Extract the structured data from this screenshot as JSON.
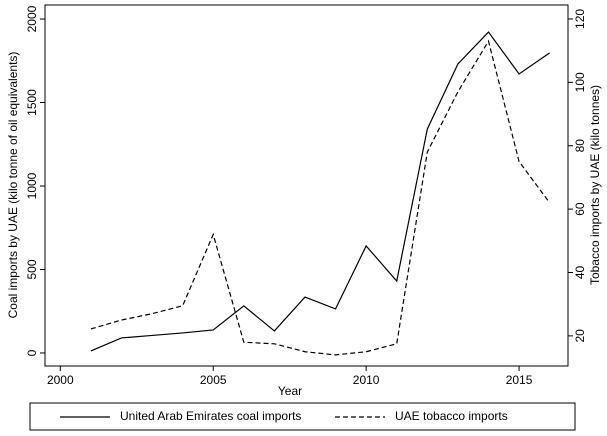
{
  "chart_data": {
    "type": "line",
    "x": [
      2001,
      2002,
      2003,
      2004,
      2005,
      2006,
      2007,
      2008,
      2009,
      2010,
      2011,
      2012,
      2013,
      2014,
      2015,
      2016
    ],
    "xlabel": "Year",
    "ylabel": "Coal imports by UAE (kilo tonne of oil equivalents)",
    "y2label": "Tobacco imports by UAE (kilo tonnes)",
    "xlim": [
      1999.5,
      2016.6
    ],
    "xticks": [
      2000,
      2005,
      2010,
      2015
    ],
    "ylim": [
      -78,
      2084
    ],
    "yticks": [
      0,
      500,
      1000,
      1500,
      2000
    ],
    "y2lim": [
      10.5,
      124.4
    ],
    "y2ticks": [
      20,
      40,
      60,
      80,
      100,
      120
    ],
    "legend": "bottom",
    "series": [
      {
        "name": "United Arab Emirates coal imports",
        "color": "#000000",
        "dash": "solid",
        "values": [
          12,
          90,
          105,
          120,
          138,
          282,
          132,
          335,
          264,
          641,
          431,
          1341,
          1731,
          1922,
          1671,
          1797
        ]
      },
      {
        "name": "UAE tobacco imports",
        "color": "#000000",
        "dash": "dashed",
        "axis": "y2",
        "values": [
          22.2,
          25,
          27,
          29.5,
          52,
          18,
          17.5,
          15,
          14,
          15,
          17.5,
          78,
          97,
          113,
          75,
          62
        ]
      }
    ]
  }
}
